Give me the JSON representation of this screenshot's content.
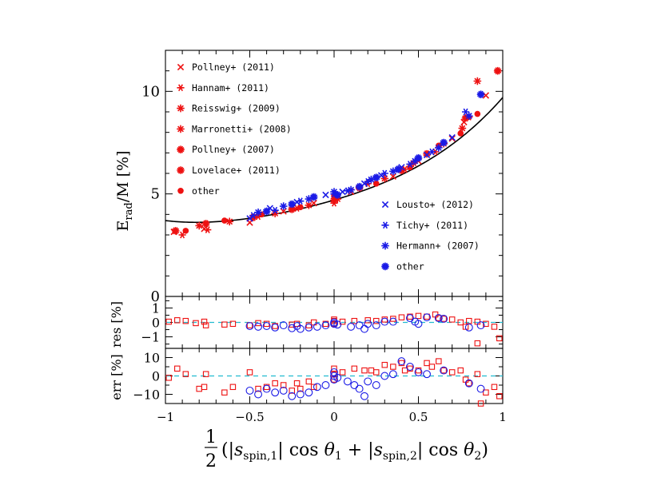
{
  "chart_data": {
    "type": "scatter",
    "colors": {
      "red": "#ee1111",
      "blue": "#1a1ae6",
      "dash": "#22bbd0",
      "fit": "#000000"
    },
    "xlim": [
      -1,
      1
    ],
    "x_ticks": [
      "−1",
      "−0.5",
      "0",
      "0.5",
      "1"
    ],
    "xlabel": {
      "frac_num": "1",
      "frac_den": "2",
      "open": "(|",
      "s": "s",
      "sub1": "spin,1",
      "mid1": "| cos ",
      "theta": "θ",
      "t1": "1",
      "plus": " + |",
      "sub2": "spin,2",
      "mid2": "| cos ",
      "t2": "2",
      "close": ")"
    },
    "panels": {
      "main": {
        "ylim": [
          0,
          12
        ],
        "ylabel": {
          "E": "E",
          "sub": "rad",
          "rest": "/M  [%]"
        },
        "y_ticks": [
          "0",
          "5",
          "10"
        ],
        "y_tick_values": [
          0,
          5,
          10
        ],
        "fit_coeffs": [
          4.7,
          2.4,
          1.4,
          0.6,
          0.6
        ],
        "red_points": [
          [
            -0.95,
            3.15
          ],
          [
            -0.94,
            3.2
          ],
          [
            -0.9,
            3.0
          ],
          [
            -0.88,
            3.2
          ],
          [
            -0.8,
            3.45
          ],
          [
            -0.77,
            3.3
          ],
          [
            -0.76,
            3.55
          ],
          [
            -0.75,
            3.25
          ],
          [
            -0.65,
            3.7
          ],
          [
            -0.62,
            3.65
          ],
          [
            -0.5,
            3.6
          ],
          [
            -0.48,
            3.85
          ],
          [
            -0.45,
            3.9
          ],
          [
            -0.43,
            4.0
          ],
          [
            -0.35,
            4.05
          ],
          [
            -0.3,
            4.15
          ],
          [
            -0.25,
            4.25
          ],
          [
            -0.22,
            4.3
          ],
          [
            -0.2,
            4.35
          ],
          [
            -0.15,
            4.45
          ],
          [
            -0.12,
            4.55
          ],
          [
            0.0,
            4.7
          ],
          [
            0.0,
            4.55
          ],
          [
            0.0,
            4.9
          ],
          [
            0.02,
            4.75
          ],
          [
            0.1,
            5.1
          ],
          [
            0.15,
            5.3
          ],
          [
            0.2,
            5.5
          ],
          [
            0.25,
            5.5
          ],
          [
            0.3,
            5.75
          ],
          [
            0.35,
            5.85
          ],
          [
            0.4,
            6.15
          ],
          [
            0.42,
            6.2
          ],
          [
            0.45,
            6.3
          ],
          [
            0.47,
            6.5
          ],
          [
            0.5,
            6.6
          ],
          [
            0.55,
            6.95
          ],
          [
            0.6,
            7.05
          ],
          [
            0.62,
            7.35
          ],
          [
            0.65,
            7.45
          ],
          [
            0.7,
            7.7
          ],
          [
            0.75,
            7.95
          ],
          [
            0.76,
            8.2
          ],
          [
            0.77,
            8.5
          ],
          [
            0.78,
            8.7
          ],
          [
            0.8,
            8.75
          ],
          [
            0.85,
            8.9
          ],
          [
            0.85,
            10.5
          ],
          [
            0.9,
            9.8
          ],
          [
            0.97,
            11.0
          ]
        ],
        "blue_points": [
          [
            -0.5,
            3.8
          ],
          [
            -0.48,
            3.95
          ],
          [
            -0.45,
            4.1
          ],
          [
            -0.4,
            4.15
          ],
          [
            -0.38,
            4.3
          ],
          [
            -0.35,
            4.2
          ],
          [
            -0.3,
            4.4
          ],
          [
            -0.25,
            4.5
          ],
          [
            -0.22,
            4.6
          ],
          [
            -0.2,
            4.65
          ],
          [
            -0.15,
            4.75
          ],
          [
            -0.12,
            4.85
          ],
          [
            -0.05,
            4.95
          ],
          [
            0.0,
            5.0
          ],
          [
            0.0,
            5.1
          ],
          [
            0.02,
            4.95
          ],
          [
            0.05,
            5.1
          ],
          [
            0.08,
            5.15
          ],
          [
            0.1,
            5.2
          ],
          [
            0.15,
            5.35
          ],
          [
            0.18,
            5.5
          ],
          [
            0.2,
            5.6
          ],
          [
            0.22,
            5.7
          ],
          [
            0.25,
            5.8
          ],
          [
            0.28,
            5.9
          ],
          [
            0.3,
            6.0
          ],
          [
            0.35,
            6.1
          ],
          [
            0.38,
            6.2
          ],
          [
            0.4,
            6.3
          ],
          [
            0.45,
            6.45
          ],
          [
            0.48,
            6.6
          ],
          [
            0.5,
            6.75
          ],
          [
            0.55,
            6.9
          ],
          [
            0.58,
            7.05
          ],
          [
            0.62,
            7.25
          ],
          [
            0.65,
            7.5
          ],
          [
            0.7,
            7.75
          ],
          [
            0.78,
            9.0
          ],
          [
            0.8,
            8.8
          ],
          [
            0.87,
            9.85
          ]
        ],
        "legend_red": [
          "Pollney+ (2011)",
          "Hannam+ (2011)",
          "Reisswig+ (2009)",
          "Marronetti+ (2008)",
          "Pollney+ (2007)",
          "Lovelace+ (2011)",
          "other"
        ],
        "legend_blue": [
          "Lousto+ (2012)",
          "Tichy+ (2011)",
          "Hermann+ (2007)",
          "other"
        ],
        "legend_position": "top-left and lower-right"
      },
      "res": {
        "ylabel": "res  [%]",
        "ylim": [
          -1.8,
          1.8
        ],
        "y_ticks": [
          "1",
          "0",
          "−1"
        ],
        "y_tick_values": [
          1,
          0,
          -1
        ],
        "red_points": [
          [
            -0.98,
            0.05
          ],
          [
            -0.93,
            0.15
          ],
          [
            -0.88,
            0.1
          ],
          [
            -0.82,
            -0.05
          ],
          [
            -0.77,
            0.05
          ],
          [
            -0.76,
            -0.2
          ],
          [
            -0.65,
            -0.15
          ],
          [
            -0.6,
            -0.1
          ],
          [
            -0.5,
            -0.2
          ],
          [
            -0.45,
            -0.05
          ],
          [
            -0.4,
            -0.1
          ],
          [
            -0.35,
            -0.25
          ],
          [
            -0.25,
            -0.15
          ],
          [
            -0.22,
            -0.1
          ],
          [
            -0.15,
            -0.2
          ],
          [
            -0.12,
            0.0
          ],
          [
            -0.05,
            -0.1
          ],
          [
            0.0,
            0.2
          ],
          [
            0.0,
            0.1
          ],
          [
            0.0,
            -0.1
          ],
          [
            0.05,
            0.05
          ],
          [
            0.12,
            0.1
          ],
          [
            0.2,
            0.15
          ],
          [
            0.25,
            0.1
          ],
          [
            0.3,
            0.2
          ],
          [
            0.35,
            0.25
          ],
          [
            0.4,
            0.35
          ],
          [
            0.45,
            0.4
          ],
          [
            0.5,
            0.45
          ],
          [
            0.55,
            0.4
          ],
          [
            0.6,
            0.55
          ],
          [
            0.62,
            0.3
          ],
          [
            0.65,
            0.25
          ],
          [
            0.7,
            0.2
          ],
          [
            0.75,
            0.0
          ],
          [
            0.78,
            -0.3
          ],
          [
            0.8,
            0.1
          ],
          [
            0.85,
            0.05
          ],
          [
            0.85,
            -1.45
          ],
          [
            0.9,
            -0.1
          ],
          [
            0.95,
            -0.3
          ],
          [
            0.98,
            -1.1
          ]
        ],
        "blue_points": [
          [
            -0.5,
            -0.25
          ],
          [
            -0.45,
            -0.3
          ],
          [
            -0.4,
            -0.25
          ],
          [
            -0.35,
            -0.35
          ],
          [
            -0.3,
            -0.2
          ],
          [
            -0.25,
            -0.4
          ],
          [
            -0.22,
            -0.25
          ],
          [
            -0.2,
            -0.45
          ],
          [
            -0.15,
            -0.35
          ],
          [
            -0.1,
            -0.3
          ],
          [
            -0.05,
            -0.2
          ],
          [
            0.0,
            -0.1
          ],
          [
            0.0,
            0.0
          ],
          [
            0.02,
            -0.15
          ],
          [
            0.1,
            -0.3
          ],
          [
            0.15,
            -0.2
          ],
          [
            0.18,
            -0.45
          ],
          [
            0.2,
            -0.1
          ],
          [
            0.25,
            -0.2
          ],
          [
            0.3,
            0.05
          ],
          [
            0.35,
            0.05
          ],
          [
            0.45,
            0.3
          ],
          [
            0.48,
            0.05
          ],
          [
            0.5,
            -0.1
          ],
          [
            0.55,
            0.35
          ],
          [
            0.62,
            0.3
          ],
          [
            0.65,
            0.25
          ],
          [
            0.8,
            -0.35
          ],
          [
            0.87,
            -0.2
          ]
        ]
      },
      "err": {
        "ylabel": "err  [%]",
        "ylim": [
          -15,
          15
        ],
        "y_ticks": [
          "10",
          "0",
          "−10"
        ],
        "y_tick_values": [
          10,
          0,
          -10
        ],
        "red_points": [
          [
            -0.98,
            -1
          ],
          [
            -0.93,
            4
          ],
          [
            -0.88,
            1
          ],
          [
            -0.8,
            -7
          ],
          [
            -0.77,
            -6
          ],
          [
            -0.76,
            1
          ],
          [
            -0.65,
            -9
          ],
          [
            -0.6,
            -6
          ],
          [
            -0.5,
            2
          ],
          [
            -0.45,
            -7
          ],
          [
            -0.4,
            -6
          ],
          [
            -0.35,
            -4
          ],
          [
            -0.3,
            -5
          ],
          [
            -0.25,
            -8
          ],
          [
            -0.22,
            -4
          ],
          [
            -0.2,
            -7
          ],
          [
            -0.15,
            -3
          ],
          [
            -0.12,
            -6
          ],
          [
            0.0,
            1
          ],
          [
            0.0,
            -2
          ],
          [
            0.0,
            4
          ],
          [
            0.05,
            2
          ],
          [
            0.12,
            4
          ],
          [
            0.18,
            3
          ],
          [
            0.22,
            3
          ],
          [
            0.25,
            2
          ],
          [
            0.3,
            6
          ],
          [
            0.35,
            5
          ],
          [
            0.4,
            7
          ],
          [
            0.42,
            3
          ],
          [
            0.45,
            4
          ],
          [
            0.5,
            3
          ],
          [
            0.55,
            7
          ],
          [
            0.58,
            5
          ],
          [
            0.62,
            8
          ],
          [
            0.65,
            3
          ],
          [
            0.7,
            2
          ],
          [
            0.75,
            3
          ],
          [
            0.78,
            -2
          ],
          [
            0.8,
            -4
          ],
          [
            0.85,
            1
          ],
          [
            0.87,
            -15
          ],
          [
            0.9,
            -9
          ],
          [
            0.95,
            -6
          ],
          [
            0.98,
            -11
          ]
        ],
        "blue_points": [
          [
            -0.5,
            -8
          ],
          [
            -0.45,
            -10
          ],
          [
            -0.4,
            -7
          ],
          [
            -0.35,
            -9
          ],
          [
            -0.3,
            -8
          ],
          [
            -0.25,
            -11
          ],
          [
            -0.2,
            -10
          ],
          [
            -0.15,
            -9
          ],
          [
            -0.1,
            -6
          ],
          [
            -0.05,
            -5
          ],
          [
            0.0,
            -2
          ],
          [
            0.0,
            0
          ],
          [
            0.0,
            2
          ],
          [
            0.02,
            -1
          ],
          [
            0.08,
            -3
          ],
          [
            0.12,
            -5
          ],
          [
            0.15,
            -7
          ],
          [
            0.18,
            -11
          ],
          [
            0.2,
            -3
          ],
          [
            0.25,
            -5
          ],
          [
            0.3,
            0
          ],
          [
            0.35,
            1
          ],
          [
            0.4,
            8
          ],
          [
            0.45,
            5
          ],
          [
            0.5,
            2
          ],
          [
            0.55,
            1
          ],
          [
            0.65,
            3
          ],
          [
            0.8,
            -4
          ],
          [
            0.87,
            -7
          ]
        ]
      }
    }
  }
}
